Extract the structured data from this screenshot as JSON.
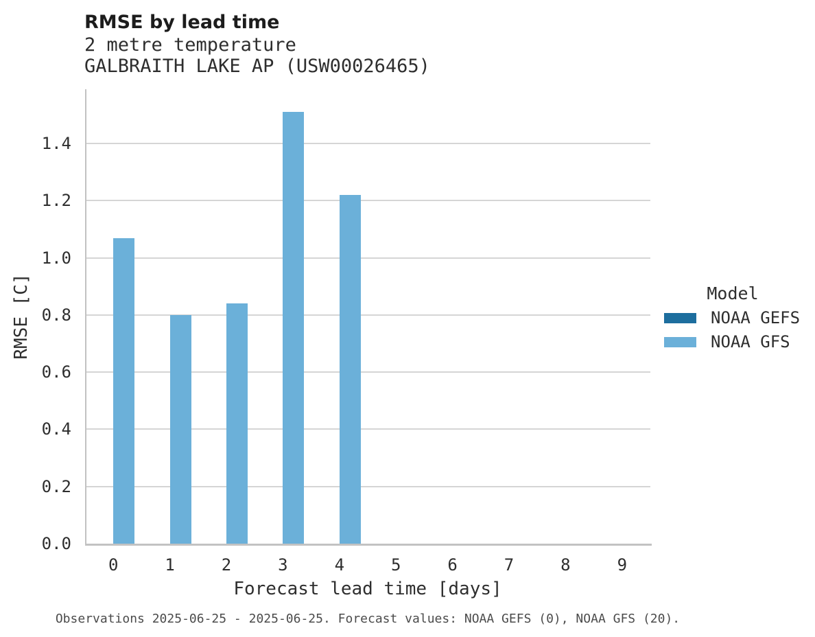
{
  "header": {
    "title": "RMSE by lead time",
    "subtitle_line1": "2 metre temperature",
    "subtitle_line2": "GALBRAITH LAKE AP (USW00026465)"
  },
  "chart_data": {
    "type": "bar",
    "title": "RMSE by lead time",
    "subtitle": [
      "2 metre temperature",
      "GALBRAITH LAKE AP (USW00026465)"
    ],
    "categories": [
      0,
      1,
      2,
      3,
      4,
      5,
      6,
      7,
      8,
      9
    ],
    "series": [
      {
        "name": "NOAA GEFS",
        "color": "#1d6e9e",
        "values": [
          0,
          0,
          0,
          0,
          0,
          0,
          0,
          0,
          0,
          0
        ]
      },
      {
        "name": "NOAA GFS",
        "color": "#6bb0d9",
        "values": [
          1.07,
          0.8,
          0.84,
          1.51,
          1.22,
          0,
          0,
          0,
          0,
          0
        ]
      }
    ],
    "xlabel": "Forecast lead time [days]",
    "ylabel": "RMSE [C]",
    "ylim": [
      0,
      1.59
    ],
    "yticks": [
      0.0,
      0.2,
      0.4,
      0.6,
      0.8,
      1.0,
      1.2,
      1.4
    ],
    "grid": "horizontal-only",
    "legend_position": "right"
  },
  "legend": {
    "title": "Model"
  },
  "footer": {
    "caption": "Observations 2025-06-25 - 2025-06-25. Forecast values: NOAA GEFS (0), NOAA GFS (20)."
  },
  "colors": {
    "background": "#ffffff",
    "gridline": "#d5d5d5",
    "spine": "#c2c2c2",
    "text": "#2e2e2e",
    "caption_text": "#4b4b4b",
    "gefs_blue": "#1d6e9e",
    "gfs_blue": "#6bb0d9"
  }
}
